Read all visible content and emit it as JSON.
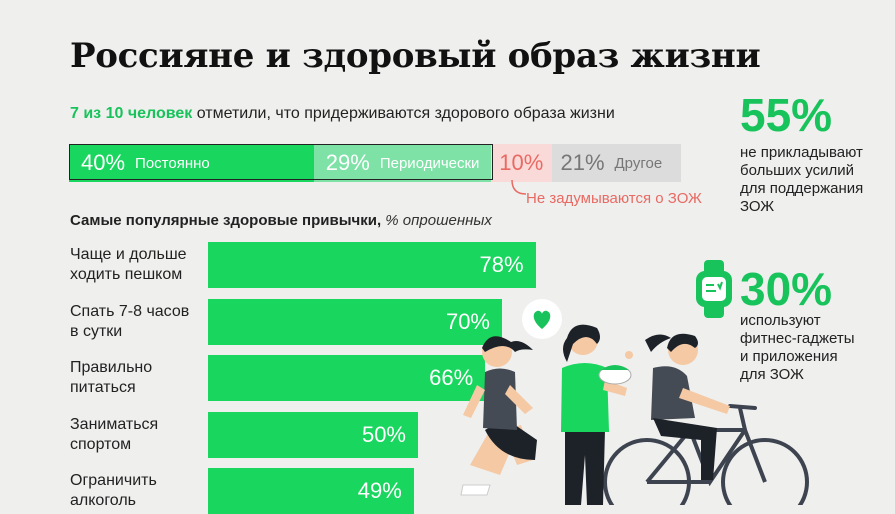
{
  "title": "Россияне и здоровый образ жизни",
  "subtitle": {
    "highlight": "7 из 10 человек",
    "rest": " отметили, что придерживаются здорового образа жизни"
  },
  "stacked": [
    {
      "value": 40,
      "pct": "40%",
      "label": "Постоянно",
      "color": "#19d65f",
      "text_color": "#ffffff"
    },
    {
      "value": 29,
      "pct": "29%",
      "label": "Периодически",
      "color": "#7ee2a6",
      "text_color": "#ffffff"
    },
    {
      "value": 10,
      "pct": "10%",
      "label": "",
      "color": "#fadad8",
      "text_color": "#e86a63"
    },
    {
      "value": 21,
      "pct": "21%",
      "label": "Другое",
      "color": "#dcdcdc",
      "text_color": "#777777"
    }
  ],
  "stacked_note": "Не задумываются о ЗОЖ",
  "habits_title": {
    "bold": "Самые популярные здоровые привычки,",
    "italic": " % опрошенных"
  },
  "chart_data": {
    "type": "bar",
    "title": "Самые популярные здоровые привычки, % опрошенных",
    "categories": [
      "Чаще и дольше ходить пешком",
      "Спать 7-8 часов в сутки",
      "Правильно питаться",
      "Заниматься спортом",
      "Ограничить алкоголь"
    ],
    "label_lines": [
      [
        "Чаще и дольше",
        "ходить пешком"
      ],
      [
        "Спать 7-8 часов",
        "в сутки"
      ],
      [
        "Правильно",
        "питаться"
      ],
      [
        "Заниматься",
        "спортом"
      ],
      [
        "Ограничить",
        "алкоголь"
      ]
    ],
    "values": [
      78,
      70,
      66,
      50,
      49
    ],
    "value_labels": [
      "78%",
      "70%",
      "66%",
      "50%",
      "49%"
    ],
    "xlim": [
      0,
      100
    ],
    "bar_color": "#19d65f"
  },
  "stat1": {
    "value": "55%",
    "text": [
      "не прикладывают",
      "больших усилий",
      "для поддержания",
      "ЗОЖ"
    ]
  },
  "stat2": {
    "value": "30%",
    "text": [
      "используют",
      "фитнес-гаджеты",
      "и приложения",
      "для ЗОЖ"
    ]
  },
  "icons": [
    "smartwatch-icon",
    "heart-icon",
    "runner-illustration",
    "food-bowl-illustration",
    "cyclist-illustration"
  ]
}
